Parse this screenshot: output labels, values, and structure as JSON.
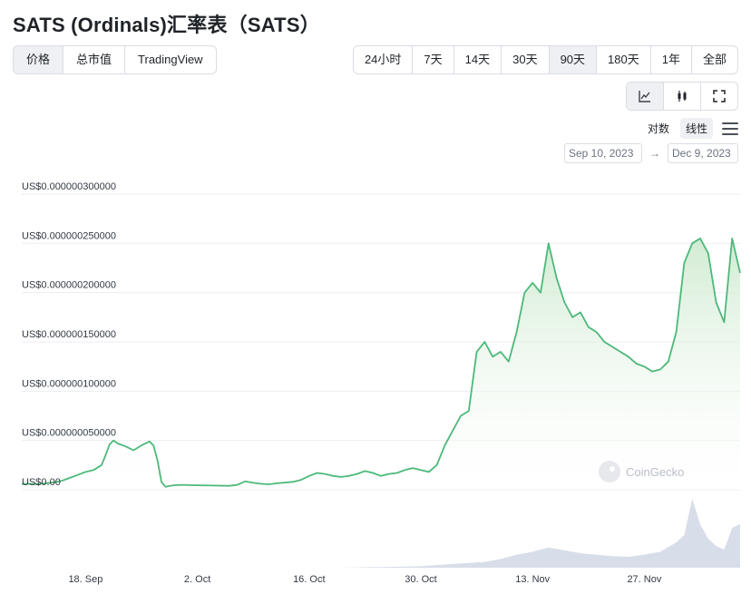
{
  "title": "SATS (Ordinals)汇率表（SATS）",
  "view_tabs": [
    {
      "label": "价格",
      "active": true
    },
    {
      "label": "总市值",
      "active": false
    },
    {
      "label": "TradingView",
      "active": false
    }
  ],
  "range_tabs": [
    {
      "label": "24小时",
      "active": false
    },
    {
      "label": "7天",
      "active": false
    },
    {
      "label": "14天",
      "active": false
    },
    {
      "label": "30天",
      "active": false
    },
    {
      "label": "90天",
      "active": true
    },
    {
      "label": "180天",
      "active": false
    },
    {
      "label": "1年",
      "active": false
    },
    {
      "label": "全部",
      "active": false
    }
  ],
  "chart_type_icons": [
    {
      "icon": "line-chart-icon",
      "active": true
    },
    {
      "icon": "candlestick-icon",
      "active": false
    },
    {
      "icon": "fullscreen-icon",
      "active": false
    }
  ],
  "scale": {
    "log_label": "对数",
    "linear_label": "线性",
    "selected": "linear"
  },
  "date_range": {
    "from": "Sep 10, 2023",
    "to": "Dec 9, 2023",
    "separator": "→"
  },
  "watermark": "CoinGecko",
  "colors": {
    "line": "#4cb97a",
    "fill_top": "#d9f0d8",
    "volume": "#cbd3e1",
    "grid": "#eceef1",
    "accent": "#8dc63f"
  },
  "chart_data": {
    "type": "line",
    "y_axis_labels": [
      "US$0.000000300000",
      "US$0.000000250000",
      "US$0.000000200000",
      "US$0.000000150000",
      "US$0.000000100000",
      "US$0.000000050000",
      "US$0.00"
    ],
    "y_ticks": [
      3e-07,
      2.5e-07,
      2e-07,
      1.5e-07,
      1e-07,
      5e-08,
      0
    ],
    "ylim": [
      0,
      3e-07
    ],
    "x_tick_labels": [
      "18. Sep",
      "2. Oct",
      "16. Oct",
      "30. Oct",
      "13. Nov",
      "27. Nov"
    ],
    "x_tick_days": [
      8,
      22,
      36,
      50,
      64,
      78
    ],
    "x_range_days": [
      0,
      90
    ],
    "series": [
      {
        "points": [
          [
            0,
            5.8e-09
          ],
          [
            1,
            6e-09
          ],
          [
            2,
            5.8e-09
          ],
          [
            3,
            6.5e-09
          ],
          [
            4,
            7.5e-09
          ],
          [
            5,
            9e-09
          ],
          [
            6,
            1.2e-08
          ],
          [
            7,
            1.5e-08
          ],
          [
            8,
            1.8e-08
          ],
          [
            9,
            2e-08
          ],
          [
            10,
            2.5e-08
          ],
          [
            10.5,
            3.5e-08
          ],
          [
            11,
            4.6e-08
          ],
          [
            11.5,
            5e-08
          ],
          [
            12,
            4.7e-08
          ],
          [
            13,
            4.4e-08
          ],
          [
            14,
            4e-08
          ],
          [
            15,
            4.5e-08
          ],
          [
            16,
            4.9e-08
          ],
          [
            16.5,
            4.5e-08
          ],
          [
            17,
            3e-08
          ],
          [
            17.5,
            8e-09
          ],
          [
            18,
            3e-09
          ],
          [
            19,
            4.5e-09
          ],
          [
            20,
            5e-09
          ],
          [
            22,
            4.5e-09
          ],
          [
            24,
            4.2e-09
          ],
          [
            26,
            4e-09
          ],
          [
            27,
            5e-09
          ],
          [
            28,
            8.5e-09
          ],
          [
            29,
            7e-09
          ],
          [
            30,
            6e-09
          ],
          [
            31,
            5.5e-09
          ],
          [
            32,
            6.5e-09
          ],
          [
            34,
            8e-09
          ],
          [
            35,
            1e-08
          ],
          [
            36,
            1.4e-08
          ],
          [
            37,
            1.7e-08
          ],
          [
            38,
            1.6e-08
          ],
          [
            39,
            1.4e-08
          ],
          [
            40,
            1.3e-08
          ],
          [
            41,
            1.4e-08
          ],
          [
            42,
            1.6e-08
          ],
          [
            43,
            1.9e-08
          ],
          [
            44,
            1.7e-08
          ],
          [
            45,
            1.4e-08
          ],
          [
            46,
            1.6e-08
          ],
          [
            47,
            1.7e-08
          ],
          [
            48,
            2e-08
          ],
          [
            49,
            2.2e-08
          ],
          [
            50,
            2e-08
          ],
          [
            51,
            1.8e-08
          ],
          [
            52,
            2.5e-08
          ],
          [
            53,
            4.5e-08
          ],
          [
            54,
            6e-08
          ],
          [
            55,
            7.5e-08
          ],
          [
            56,
            8e-08
          ],
          [
            57,
            1.4e-07
          ],
          [
            58,
            1.5e-07
          ],
          [
            59,
            1.35e-07
          ],
          [
            60,
            1.4e-07
          ],
          [
            61,
            1.3e-07
          ],
          [
            62,
            1.6e-07
          ],
          [
            63,
            2e-07
          ],
          [
            64,
            2.1e-07
          ],
          [
            65,
            2e-07
          ],
          [
            66,
            2.5e-07
          ],
          [
            67,
            2.15e-07
          ],
          [
            68,
            1.9e-07
          ],
          [
            69,
            1.75e-07
          ],
          [
            70,
            1.8e-07
          ],
          [
            71,
            1.65e-07
          ],
          [
            72,
            1.6e-07
          ],
          [
            73,
            1.5e-07
          ],
          [
            74,
            1.45e-07
          ],
          [
            75,
            1.4e-07
          ],
          [
            76,
            1.35e-07
          ],
          [
            77,
            1.28e-07
          ],
          [
            78,
            1.25e-07
          ],
          [
            79,
            1.2e-07
          ],
          [
            80,
            1.22e-07
          ],
          [
            81,
            1.3e-07
          ],
          [
            82,
            1.6e-07
          ],
          [
            83,
            2.3e-07
          ],
          [
            84,
            2.5e-07
          ],
          [
            85,
            2.55e-07
          ],
          [
            86,
            2.4e-07
          ],
          [
            87,
            1.9e-07
          ],
          [
            88,
            1.7e-07
          ],
          [
            89,
            2.55e-07
          ],
          [
            90,
            2.2e-07
          ]
        ]
      }
    ],
    "volume": [
      [
        0,
        0
      ],
      [
        40,
        0
      ],
      [
        50,
        0.02
      ],
      [
        55,
        0.06
      ],
      [
        58,
        0.08
      ],
      [
        60,
        0.12
      ],
      [
        62,
        0.18
      ],
      [
        64,
        0.22
      ],
      [
        66,
        0.28
      ],
      [
        68,
        0.24
      ],
      [
        70,
        0.2
      ],
      [
        72,
        0.18
      ],
      [
        74,
        0.16
      ],
      [
        76,
        0.15
      ],
      [
        78,
        0.18
      ],
      [
        80,
        0.22
      ],
      [
        82,
        0.35
      ],
      [
        83,
        0.45
      ],
      [
        84,
        0.95
      ],
      [
        85,
        0.6
      ],
      [
        86,
        0.4
      ],
      [
        87,
        0.3
      ],
      [
        88,
        0.25
      ],
      [
        89,
        0.55
      ],
      [
        90,
        0.6
      ]
    ],
    "grid": true
  }
}
